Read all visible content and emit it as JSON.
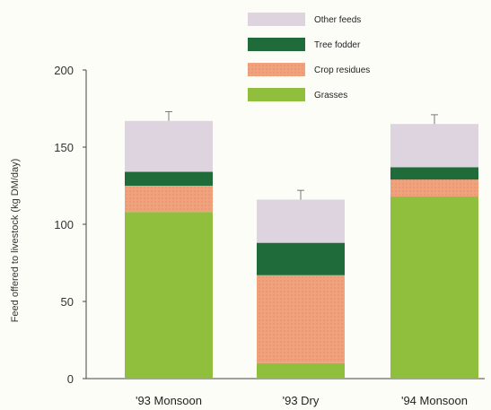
{
  "chart_data": {
    "type": "bar",
    "stacked": true,
    "categories": [
      "'93 Monsoon",
      "'93 Dry",
      "'94 Monsoon"
    ],
    "ylabel": "Feed offered to livestock (kg DM/day)",
    "ylim": [
      0,
      200
    ],
    "yticks": [
      0,
      50,
      100,
      150,
      200
    ],
    "legend_position": "top-right",
    "series": [
      {
        "name": "Grasses",
        "values": [
          108,
          10,
          118
        ],
        "color": "#8fbf3c"
      },
      {
        "name": "Crop residues",
        "values": [
          17,
          57,
          11
        ],
        "color": "#f0a27c"
      },
      {
        "name": "Tree fodder",
        "values": [
          9,
          21,
          8
        ],
        "color": "#1f6b3a"
      },
      {
        "name": "Other feeds",
        "values": [
          33,
          28,
          28
        ],
        "color": "#ddd4df"
      }
    ],
    "error_bars": [
      6,
      6,
      6
    ]
  }
}
